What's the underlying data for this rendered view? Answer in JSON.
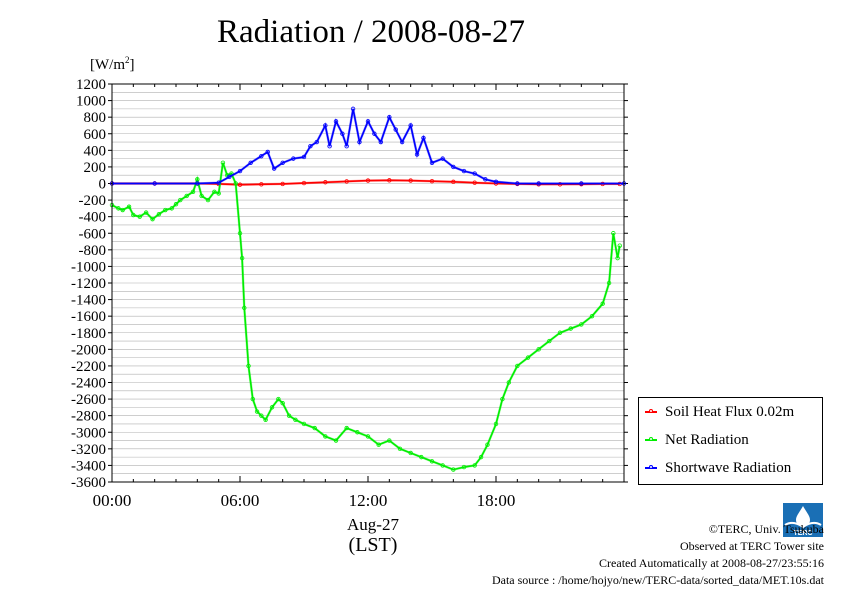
{
  "header": {
    "title": "Radiation / 2008-08-27",
    "y_unit_base": "[W/m",
    "y_unit_sup": "2",
    "y_unit_end": "]"
  },
  "x_axis": {
    "date_label": "Aug-27",
    "zone_label": "(LST)"
  },
  "footer": {
    "copyright": "©TERC, Univ. Tsukuba",
    "site": "Observed at TERC Tower site",
    "created": "Created Automatically at 2008-08-27/23:55:16",
    "source": "Data source : /home/hojyo/new/TERC-data/sorted_data/MET.10s.dat"
  },
  "logo_text": "TERC",
  "chart_data": {
    "type": "line",
    "title": "Radiation / 2008-08-27",
    "ylabel": "[W/m2]",
    "xlabel": "Aug-27 (LST)",
    "xlim": [
      0,
      24
    ],
    "ylim": [
      -3600,
      1200
    ],
    "y_ticks": [
      1200,
      1000,
      800,
      600,
      400,
      200,
      0,
      -200,
      -400,
      -600,
      -800,
      -1000,
      -1200,
      -1400,
      -1600,
      -1800,
      -2000,
      -2200,
      -2400,
      -2600,
      -2800,
      -3000,
      -3200,
      -3400,
      -3600
    ],
    "y_tick_labels": [
      "1200",
      "1000",
      "800",
      "600",
      "400",
      "200",
      "0",
      "-200",
      "-400",
      "-600",
      "-800",
      "-1000",
      "-1200",
      "-1400",
      "-1600",
      "-1800",
      "-2000",
      "-2200",
      "-2400",
      "-2600",
      "-2800",
      "-3000",
      "-3200",
      "-3400",
      "-3600"
    ],
    "x_ticks": [
      0,
      6,
      12,
      18
    ],
    "x_tick_labels": [
      "00:00",
      "06:00",
      "12:00",
      "18:00"
    ],
    "grid": true,
    "legend_position": "bottom-right outside",
    "series": [
      {
        "name": "Soil Heat Flux 0.02m",
        "color": "#ff0000",
        "x": [
          0,
          2,
          4,
          5,
          6,
          7,
          8,
          9,
          10,
          11,
          12,
          13,
          14,
          15,
          16,
          17,
          18,
          19,
          20,
          21,
          22,
          23,
          23.8
        ],
        "y": [
          0,
          0,
          0,
          -5,
          -15,
          -10,
          -5,
          5,
          15,
          25,
          35,
          38,
          35,
          28,
          20,
          10,
          0,
          -5,
          -10,
          -10,
          -8,
          -5,
          -5
        ]
      },
      {
        "name": "Net Radiation",
        "color": "#00ee00",
        "x": [
          0,
          0.3,
          0.5,
          0.8,
          1,
          1.3,
          1.6,
          1.9,
          2.2,
          2.5,
          2.8,
          3,
          3.2,
          3.5,
          3.8,
          4,
          4.2,
          4.5,
          4.8,
          5,
          5.2,
          5.4,
          5.6,
          5.8,
          6,
          6.1,
          6.2,
          6.4,
          6.6,
          6.8,
          7,
          7.2,
          7.5,
          7.8,
          8,
          8.3,
          8.6,
          9,
          9.5,
          10,
          10.5,
          11,
          11.5,
          12,
          12.5,
          13,
          13.5,
          14,
          14.5,
          15,
          15.5,
          16,
          16.5,
          17,
          17.3,
          17.6,
          18,
          18.3,
          18.6,
          19,
          19.5,
          20,
          20.5,
          21,
          21.5,
          22,
          22.5,
          23,
          23.3,
          23.5,
          23.7,
          23.8
        ],
        "y": [
          -260,
          -300,
          -320,
          -280,
          -380,
          -400,
          -350,
          -430,
          -370,
          -320,
          -300,
          -250,
          -200,
          -150,
          -100,
          50,
          -150,
          -200,
          -100,
          -120,
          250,
          100,
          120,
          0,
          -600,
          -900,
          -1500,
          -2200,
          -2600,
          -2750,
          -2800,
          -2850,
          -2700,
          -2600,
          -2650,
          -2800,
          -2850,
          -2900,
          -2950,
          -3050,
          -3100,
          -2950,
          -3000,
          -3050,
          -3150,
          -3100,
          -3200,
          -3250,
          -3300,
          -3350,
          -3400,
          -3450,
          -3420,
          -3400,
          -3300,
          -3150,
          -2900,
          -2600,
          -2400,
          -2200,
          -2100,
          -2000,
          -1900,
          -1800,
          -1750,
          -1700,
          -1600,
          -1450,
          -1200,
          -600,
          -900,
          -750
        ]
      },
      {
        "name": "Shortwave Radiation",
        "color": "#0000ff",
        "x": [
          0,
          2,
          4,
          5,
          5.5,
          6,
          6.5,
          7,
          7.3,
          7.6,
          8,
          8.5,
          9,
          9.3,
          9.6,
          10,
          10.2,
          10.5,
          10.8,
          11,
          11.3,
          11.6,
          12,
          12.3,
          12.6,
          13,
          13.3,
          13.6,
          14,
          14.3,
          14.6,
          15,
          15.5,
          16,
          16.5,
          17,
          17.5,
          18,
          19,
          20,
          22,
          24
        ],
        "y": [
          0,
          0,
          0,
          10,
          80,
          150,
          250,
          330,
          380,
          180,
          250,
          300,
          320,
          450,
          500,
          700,
          450,
          750,
          600,
          450,
          900,
          500,
          750,
          600,
          500,
          800,
          650,
          500,
          700,
          350,
          550,
          250,
          300,
          200,
          150,
          120,
          50,
          20,
          0,
          0,
          0,
          0
        ]
      }
    ]
  }
}
